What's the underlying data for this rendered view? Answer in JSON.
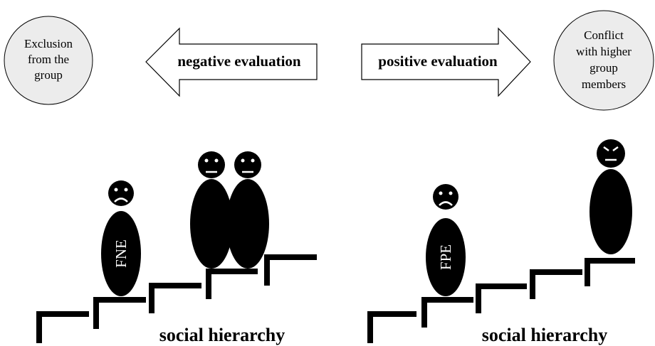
{
  "left": {
    "circle_lines": [
      "Exclusion",
      "from the",
      "group"
    ],
    "arrow": "negative evaluation",
    "figure_label": "FNE",
    "caption": "social hierarchy"
  },
  "right": {
    "circle_lines": [
      "Conflict",
      "with higher",
      "group",
      "members"
    ],
    "arrow": "positive evaluation",
    "figure_label": "FPE",
    "caption": "social hierarchy"
  }
}
